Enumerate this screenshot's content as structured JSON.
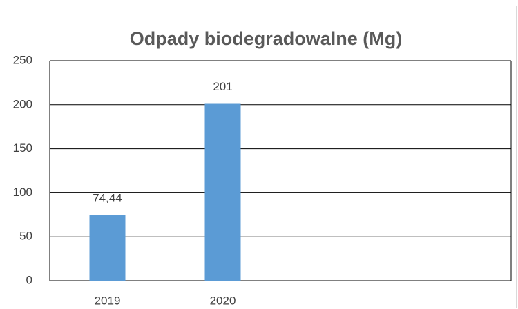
{
  "chart_data": {
    "type": "bar",
    "title": "Odpady biodegradowalne (Mg)",
    "categories": [
      "2019",
      "2020",
      null,
      null
    ],
    "values": [
      74.44,
      201,
      null,
      null
    ],
    "value_labels": [
      "74,44",
      "201",
      null,
      null
    ],
    "color": "#5b9bd5",
    "ylim": [
      0,
      250
    ],
    "yticks": [
      0,
      50,
      100,
      150,
      200,
      250
    ],
    "grid": true
  }
}
